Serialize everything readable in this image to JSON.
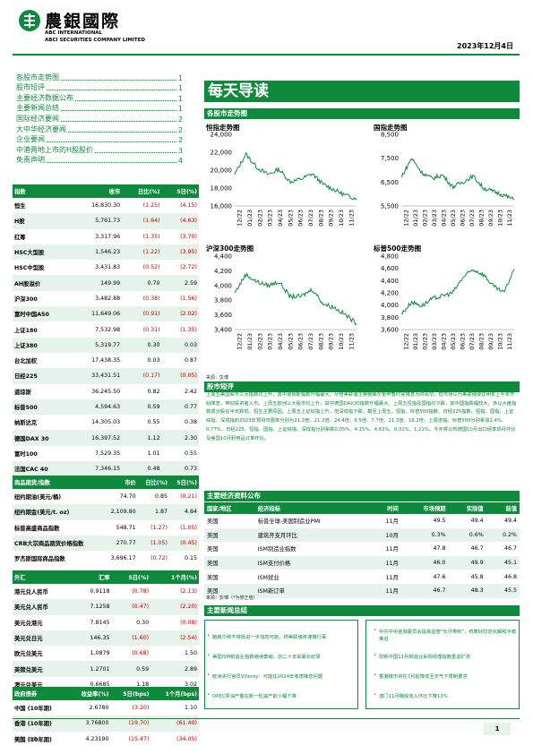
{
  "header": {
    "brand_cn": "農銀國際",
    "brand_en_1": "ABC INTERNATIONAL",
    "brand_en_2": "ABCI SECURITIES COMPANY LIMITED",
    "date": "2023年12月4日"
  },
  "toc": [
    {
      "label": "各股市走势图",
      "page": "1"
    },
    {
      "label": "股市短评",
      "page": "1"
    },
    {
      "label": "主要经济数据公布",
      "page": "1"
    },
    {
      "label": "主要新闻总结",
      "page": "1"
    },
    {
      "label": "国际经济要闻",
      "page": "2"
    },
    {
      "label": "大中华经济要闻",
      "page": "2"
    },
    {
      "label": "企业要闻",
      "page": "2"
    },
    {
      "label": "中港两地上市的H股股价",
      "page": "3"
    },
    {
      "label": "免责声明",
      "page": "4"
    }
  ],
  "banner_title": "每天导读",
  "markets_section_title": "各股市走势图",
  "charts": [
    {
      "title": "恒指走势图",
      "ylim": [
        16000,
        24000
      ],
      "ticks": [
        "24,000",
        "22,000",
        "20,000",
        "18,000",
        "16,000"
      ]
    },
    {
      "title": "国指走势图",
      "ylim": [
        5500,
        8500
      ],
      "ticks": [
        "8,500",
        "7,500",
        "6,500",
        "5,500"
      ]
    },
    {
      "title": "沪深300走势图",
      "ylim": [
        3400,
        4400
      ],
      "ticks": [
        "4,400",
        "4,200",
        "4,000",
        "3,800",
        "3,600",
        "3,400"
      ]
    },
    {
      "title": "标普500走势图",
      "ylim": [
        3600,
        4800
      ],
      "ticks": [
        "4,800",
        "4,600",
        "4,400",
        "4,200",
        "4,000",
        "3,800",
        "3,600"
      ]
    }
  ],
  "chart_x_labels": [
    "12/22",
    "01/23",
    "02/23",
    "03/23",
    "04/23",
    "05/23",
    "06/23",
    "07/23",
    "08/23",
    "09/23",
    "10/23",
    "11/23"
  ],
  "chart_data": [
    {
      "type": "line",
      "title": "恒指走势图",
      "x": [
        "12/22",
        "01/23",
        "02/23",
        "03/23",
        "04/23",
        "05/23",
        "06/23",
        "07/23",
        "08/23",
        "09/23",
        "10/23",
        "11/23"
      ],
      "values": [
        19500,
        21800,
        20300,
        19500,
        20100,
        18700,
        19000,
        19600,
        18400,
        17800,
        17200,
        16830
      ],
      "ylim": [
        16000,
        24000
      ]
    },
    {
      "type": "line",
      "title": "国指走势图",
      "x": [
        "12/22",
        "01/23",
        "02/23",
        "03/23",
        "04/23",
        "05/23",
        "06/23",
        "07/23",
        "08/23",
        "09/23",
        "10/23",
        "11/23"
      ],
      "values": [
        6700,
        7500,
        6900,
        6650,
        6800,
        6300,
        6500,
        6750,
        6250,
        6100,
        5950,
        5760
      ],
      "ylim": [
        5500,
        8500
      ]
    },
    {
      "type": "line",
      "title": "沪深300走势图",
      "x": [
        "12/22",
        "01/23",
        "02/23",
        "03/23",
        "04/23",
        "05/23",
        "06/23",
        "07/23",
        "08/23",
        "09/23",
        "10/23",
        "11/23"
      ],
      "values": [
        3900,
        4150,
        4050,
        4000,
        4050,
        3850,
        3850,
        3950,
        3750,
        3700,
        3600,
        3483
      ],
      "ylim": [
        3400,
        4400
      ]
    },
    {
      "type": "line",
      "title": "标普500走势图",
      "x": [
        "12/22",
        "01/23",
        "02/23",
        "03/23",
        "04/23",
        "05/23",
        "06/23",
        "07/23",
        "08/23",
        "09/23",
        "10/23",
        "11/23"
      ],
      "values": [
        3850,
        4050,
        3990,
        4100,
        4150,
        4200,
        4450,
        4580,
        4500,
        4300,
        4200,
        4594
      ],
      "ylim": [
        3600,
        4800
      ]
    }
  ],
  "chart_source": "来源：彭博",
  "index_table": {
    "headers": [
      "指数",
      "收市",
      "日比(%)",
      "5日(%)"
    ],
    "rows": [
      [
        "恒生",
        "16,830.30",
        "(1.25)",
        "(4.15)"
      ],
      [
        "H股",
        "5,761.73",
        "(1.64)",
        "(4.63)"
      ],
      [
        "红筹",
        "3,317.96",
        "(1.35)",
        "(3.70)"
      ],
      [
        "HSC大型股",
        "1,546.23",
        "(1.22)",
        "(3.95)"
      ],
      [
        "HSC中型股",
        "3,431.83",
        "(0.52)",
        "(2.72)"
      ],
      [
        "AH股溢价",
        "149.99",
        "0.70",
        "2.59"
      ],
      [
        "沪深300",
        "3,482.88",
        "(0.38)",
        "(1.56)"
      ],
      [
        "富时中国A50",
        "11,649.06",
        "(0.91)",
        "(2.02)"
      ],
      [
        "上证180",
        "7,532.98",
        "(0.31)",
        "(1.35)"
      ],
      [
        "上证380",
        "5,319.77",
        "0.30",
        "0.03"
      ],
      [
        "台北加权",
        "17,438.35",
        "0.03",
        "0.87"
      ],
      [
        "日经225",
        "33,431.51",
        "(0.17)",
        "(0.05)"
      ],
      [
        "道琼斯",
        "36,245.50",
        "0.82",
        "2.42"
      ],
      [
        "标普500",
        "4,594.63",
        "0.59",
        "0.77"
      ],
      [
        "纳斯达克",
        "14,305.03",
        "0.55",
        "0.38"
      ],
      [
        "德国DAX 30",
        "16,397.52",
        "1.12",
        "2.30"
      ],
      [
        "富时100",
        "7,529.35",
        "1.01",
        "0.55"
      ],
      [
        "法国CAC 40",
        "7,346.15",
        "0.48",
        "0.73"
      ]
    ]
  },
  "commodity_table": {
    "headers": [
      "商品期货/指数",
      "市价",
      "日比(%)",
      "5日(%)"
    ],
    "rows": [
      [
        "纽约期油(美元/桶)",
        "74.70",
        "0.85",
        "(0.21)"
      ],
      [
        "纽约期金(美元/t. oz)",
        "2,109.80",
        "1.87",
        "4.84"
      ],
      [
        "标普高盛商品指数",
        "548.71",
        "(1.27)",
        "(1.05)"
      ],
      [
        "CRB大宗商品期货价格指数",
        "270.77",
        "(1.05)",
        "(0.45)"
      ],
      [
        "罗杰斯国际商品指数",
        "3,696.17",
        "(0.72)",
        "0.15"
      ]
    ]
  },
  "fx_table": {
    "headers": [
      "外汇",
      "汇率",
      "5日(%)",
      "1个月(%)"
    ],
    "rows": [
      [
        "港元兑人民币",
        "0.9118",
        "(0.78)",
        "(2.13)"
      ],
      [
        "美元兑人民币",
        "7.1258",
        "(0.47)",
        "(2.20)"
      ],
      [
        "美元兑港元",
        "7.8145",
        "0.30",
        "(0.08)"
      ],
      [
        "美元兑日元",
        "146.35",
        "(1.60)",
        "(2.54)"
      ],
      [
        "欧元兑美元",
        "1.0879",
        "(0.68)",
        "1.50"
      ],
      [
        "英镑兑美元",
        "1.2701",
        "0.59",
        "2.89"
      ],
      [
        "澳元兑美元",
        "0.6685",
        "1.18",
        "3.02"
      ]
    ]
  },
  "bond_table": {
    "headers": [
      "政府债券",
      "收益率(%)",
      "5日(bps)",
      "1个月(bps)"
    ],
    "rows": [
      [
        "中国 (10年期)",
        "2.6780",
        "(3.20)",
        "1.10"
      ],
      [
        "香港 (10年期)",
        "3.76800",
        "(19.70)",
        "(61.40)"
      ],
      [
        "美国 (10年期)",
        "4.23190",
        "(15.47)",
        "(34.05)"
      ]
    ]
  },
  "left_source": "来源：彭博",
  "commentary": {
    "title": "股市短评",
    "text": "上周五美国股市三大指数均上升，其中道琼斯指数升幅最大。尽管美联储主席鲍威尔重申暂时言降息为时尚早，但市场认为美联储或在明年上半年开始降息，带动投资者入市。上周五欧洲三大股市均上升，其中德国DAX30指数升幅最大。上周五恒指及国指均下跌，其中国指跌幅较大。多以大盘指数成分股在半天跌低，恒生主要原因。上周五上证综指上升，但深成指下跌，截至上周五，恒指、标普500指数、日经225指数、恒指、国指、上证综指、深成指的2023年预测市盈率分别为21.2倍、21.2倍、24.4倍、8.5倍、7.7倍、11.3倍、18.2倍，上周道指、标普500分别累涨2.4%、0.77%，日经225、恒指、国指、上证综指、深成指分别累跌0.05%、4.15%、4.63%、0.31%、1.21%。今天将公布德国10月出口经季调月环比及美国10月耐用品订单环比。"
  },
  "econ": {
    "title": "主要经济资料公布",
    "headers": [
      "国家/地区",
      "经济指标",
      "时间",
      "市场预期",
      "实际值",
      "前值"
    ],
    "rows": [
      [
        "美国",
        "标普全球-美国制造业PMI",
        "11月",
        "49.5",
        "49.4",
        "49.4"
      ],
      [
        "美国",
        "建筑开支月环比",
        "10月",
        "0.3%",
        "0.6%",
        "0.2%"
      ],
      [
        "美国",
        "ISM制造业指数",
        "11月",
        "47.8",
        "46.7",
        "46.7"
      ],
      [
        "美国",
        "ISM支付价格",
        "11月",
        "46.0",
        "49.9",
        "45.1"
      ],
      [
        "美国",
        "ISM就业",
        "11月",
        "47.6",
        "45.8",
        "46.8"
      ],
      [
        "美国",
        "ISM新订单",
        "11月",
        "46.7",
        "48.3",
        "45.5"
      ]
    ],
    "source": "来源：彭博（*为修正值）"
  },
  "news": {
    "title": "主要新闻总结",
    "left": [
      "鲍威尔称不排除进一步加息可能，称美联储将谨慎行事",
      "美国ISM制造业指数继续萎缩，创二十年来最长纪录",
      "欧洲央行官员Villeroy：可能在2024年考虑降息问题",
      "OPEC原油产量在新一轮减产前小幅下降"
    ],
    "right": [
      "中共中央金融委员会提高监管\"长牙带刺\"，统筹好防范化解和平稳推进",
      "财新中国11月制造业采购经理指数重返扩张",
      "香港楼市将在7月起降低至天气下限制要求",
      "澳门11月赌收收入环比下降13%"
    ]
  },
  "page_number": "1"
}
